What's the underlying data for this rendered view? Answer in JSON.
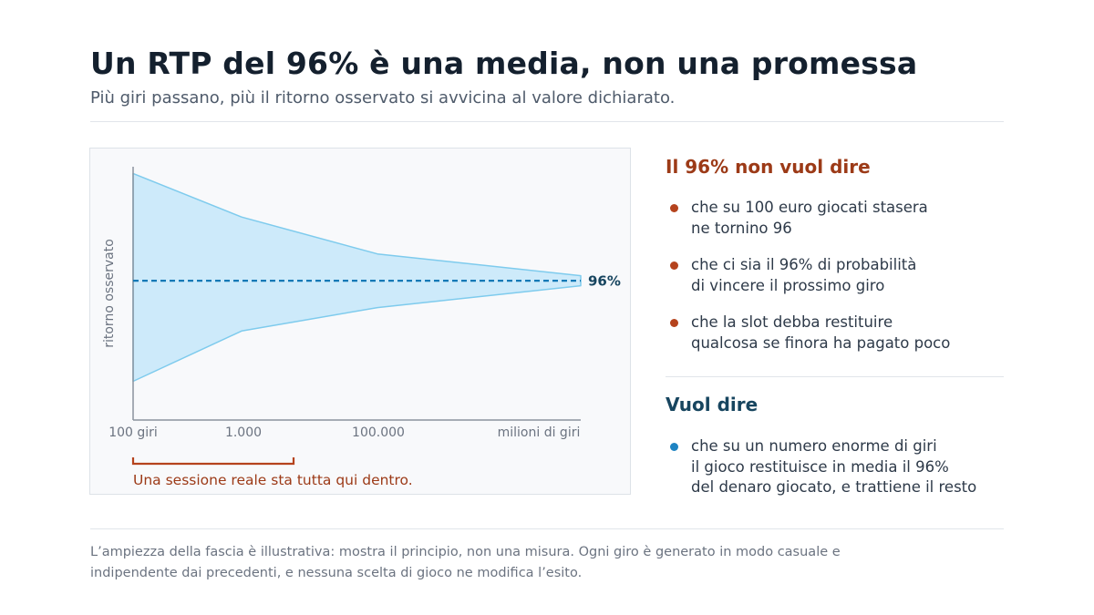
{
  "header": {
    "title": "Un RTP del 96% è una media, non una promessa",
    "subtitle": "Più giri passano, più il ritorno osservato si avvicina al valore dichiarato."
  },
  "colors": {
    "band_fill": "#cdeafa",
    "band_stroke": "#7ecbed",
    "mean_line": "#1379b6",
    "session_bracket": "#b5431d",
    "heading_not": "#9c3a17",
    "heading_yes": "#17455f"
  },
  "chart_data": {
    "type": "area",
    "ylabel": "ritorno osservato",
    "xlabel": "",
    "x_scale": "log",
    "y_axis_ticks": "none",
    "grid": false,
    "x_ticks": [
      "100 giri",
      "1.000",
      "100.000",
      "milioni di giri"
    ],
    "series": [
      {
        "points": [
          {
            "x": "100 giri",
            "upper": 1.28,
            "lower": 0.66
          },
          {
            "x": "1.000",
            "upper": 1.15,
            "lower": 0.81
          },
          {
            "x": "100.000",
            "upper": 1.04,
            "lower": 0.88
          },
          {
            "x": "milioni di giri",
            "upper": 0.975,
            "lower": 0.945
          }
        ]
      }
    ],
    "reference_line": {
      "value": 0.96,
      "label": "96%",
      "style": "dashed"
    },
    "ylim": [
      0.55,
      1.3
    ],
    "annotation": {
      "text": "Una sessione reale sta tutta qui dentro.",
      "span": [
        "100 giri",
        "1.000"
      ]
    }
  },
  "sidebar": {
    "not_heading": "Il 96% non vuol dire",
    "not_items": [
      {
        "lines": [
          "che su 100 euro giocati stasera",
          "ne tornino 96"
        ]
      },
      {
        "lines": [
          "che ci sia il 96% di probabilità",
          "di vincere il prossimo giro"
        ]
      },
      {
        "lines": [
          "che la slot debba restituire",
          "qualcosa se finora ha pagato poco"
        ]
      }
    ],
    "yes_heading": "Vuol dire",
    "yes_items": [
      {
        "lines": [
          "che su un numero enorme di giri",
          "il gioco restituisce in media il 96%",
          "del denaro giocato, e trattiene il resto"
        ]
      }
    ]
  },
  "footnote": {
    "lines": [
      "L’ampiezza della fascia è illustrativa: mostra il principio, non una misura. Ogni giro è generato in modo casuale e",
      "indipendente dai precedenti, e nessuna scelta di gioco ne modifica l’esito."
    ]
  }
}
